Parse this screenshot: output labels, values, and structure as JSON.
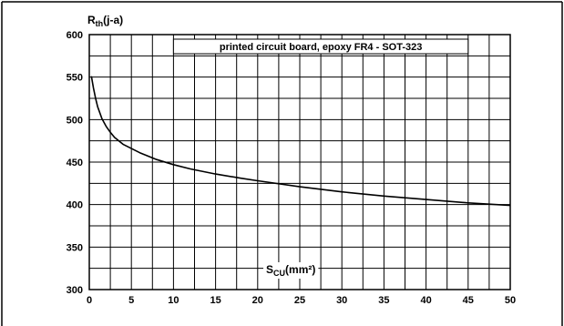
{
  "chart_data": {
    "type": "line",
    "annotation": "printed circuit board, epoxy FR4 - SOT-323",
    "ylabel": {
      "main": "R",
      "sub": "th",
      "suffix": "(j-a)"
    },
    "xlabel": {
      "main": "S",
      "sub": "CU",
      "suffix": "(mm²)"
    },
    "xlim": [
      0,
      50
    ],
    "ylim": [
      300,
      600
    ],
    "x_ticks": [
      0,
      5,
      10,
      15,
      20,
      25,
      30,
      35,
      40,
      45,
      50
    ],
    "y_ticks": [
      300,
      350,
      400,
      450,
      500,
      550,
      600
    ],
    "grid": true,
    "series": [
      {
        "x": [
          0.25,
          0.5,
          0.75,
          1,
          1.5,
          2,
          2.5,
          3,
          4,
          5,
          6,
          7,
          8,
          10,
          12,
          15,
          18,
          20,
          25,
          30,
          35,
          40,
          45,
          50
        ],
        "y": [
          551,
          537,
          525,
          515,
          501,
          492,
          485,
          479,
          471,
          466,
          461,
          457,
          453,
          447,
          442,
          436,
          431,
          428,
          421,
          415,
          410,
          406,
          402,
          399
        ]
      }
    ]
  }
}
